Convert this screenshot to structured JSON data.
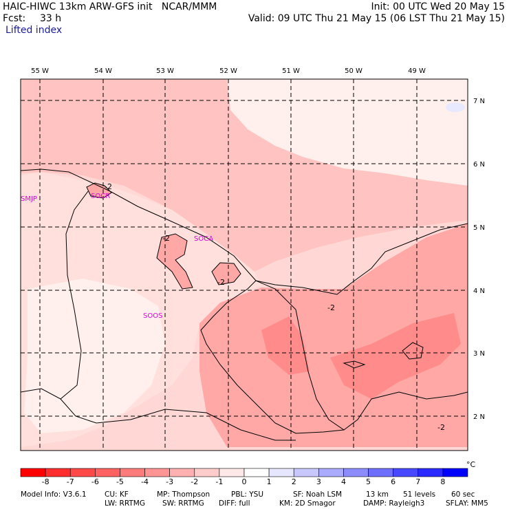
{
  "header": {
    "title": "HAIC-HIWC 13km ARW-GFS init   NCAR/MMM",
    "forecast_label": "Fcst:",
    "forecast_value": "33 h",
    "field_name": "Lifted index",
    "init": "Init: 00 UTC Wed 20 May 15",
    "valid": "Valid: 09 UTC Thu 21 May 15 (06 LST Thu 21 May 15)"
  },
  "map": {
    "longitude_labels": [
      "55 W",
      "54 W",
      "53 W",
      "52 W",
      "51 W",
      "50 W",
      "49 W"
    ],
    "latitude_labels": [
      "7 N",
      "6 N",
      "5 N",
      "4 N",
      "3 N",
      "2 N"
    ],
    "stations": [
      "SMJP",
      "SOCR",
      "SOCA",
      "SOOS"
    ],
    "contour_labels": [
      "-2",
      "-2",
      "-2",
      "-2",
      "-2"
    ]
  },
  "colorbar": {
    "levels": [
      "-8",
      "-7",
      "-6",
      "-5",
      "-4",
      "-3",
      "-2",
      "-1",
      "0",
      "1",
      "2",
      "3",
      "4",
      "5",
      "6",
      "7",
      "8"
    ],
    "unit": "°C",
    "colors": [
      "#ff0000",
      "#ff2e2e",
      "#ff4a4a",
      "#ff6262",
      "#ff7c7c",
      "#ff9494",
      "#ffb0b0",
      "#ffcccc",
      "#ffe8e8",
      "#ffffff",
      "#e6e6ff",
      "#c8c8ff",
      "#aaaaff",
      "#8c8cff",
      "#6e6eff",
      "#4848ff",
      "#2a2aff",
      "#0000ff"
    ]
  },
  "footer": {
    "model_info": "Model Info: V3.6.1",
    "cu": "CU: KF",
    "mp": "MP: Thompson",
    "pbl": "PBL: YSU",
    "sf": "SF: Noah LSM",
    "res": "13 km",
    "levels": "51 levels",
    "dt": "60 sec",
    "lw": "LW: RRTMG",
    "sw": "SW: RRTMG",
    "diff": "DIFF: full",
    "km": "KM: 2D Smagor",
    "damp": "DAMP: Rayleigh3",
    "sflay": "SFLAY: MM5"
  },
  "field_colors": {
    "land_light": "#fff0ee",
    "land_mid": "#ffe0dc",
    "ocean_light": "#ffd8d6",
    "ocean_mid": "#ffc4c2",
    "warm_zone": "#ffa8a6",
    "core": "#ff8c8a",
    "blue_patch": "#e8e8ff",
    "station_color": "#e000e0"
  }
}
